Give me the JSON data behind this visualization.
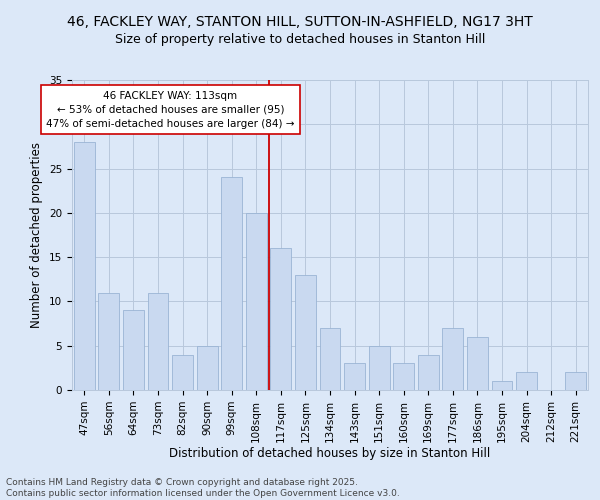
{
  "title_line1": "46, FACKLEY WAY, STANTON HILL, SUTTON-IN-ASHFIELD, NG17 3HT",
  "title_line2": "Size of property relative to detached houses in Stanton Hill",
  "xlabel": "Distribution of detached houses by size in Stanton Hill",
  "ylabel": "Number of detached properties",
  "categories": [
    "47sqm",
    "56sqm",
    "64sqm",
    "73sqm",
    "82sqm",
    "90sqm",
    "99sqm",
    "108sqm",
    "117sqm",
    "125sqm",
    "134sqm",
    "143sqm",
    "151sqm",
    "160sqm",
    "169sqm",
    "177sqm",
    "186sqm",
    "195sqm",
    "204sqm",
    "212sqm",
    "221sqm"
  ],
  "values": [
    28,
    11,
    9,
    11,
    4,
    5,
    24,
    20,
    16,
    13,
    7,
    3,
    5,
    3,
    4,
    7,
    6,
    1,
    2,
    0,
    2
  ],
  "bar_color": "#c9d9f0",
  "bar_edge_color": "#9ab4d4",
  "grid_color": "#b8c8dc",
  "background_color": "#dce8f8",
  "vline_x_index": 7.5,
  "vline_color": "#cc0000",
  "annotation_text": "46 FACKLEY WAY: 113sqm\n← 53% of detached houses are smaller (95)\n47% of semi-detached houses are larger (84) →",
  "annotation_box_color": "#ffffff",
  "annotation_border_color": "#cc0000",
  "ylim": [
    0,
    35
  ],
  "yticks": [
    0,
    5,
    10,
    15,
    20,
    25,
    30,
    35
  ],
  "footer_line1": "Contains HM Land Registry data © Crown copyright and database right 2025.",
  "footer_line2": "Contains public sector information licensed under the Open Government Licence v3.0.",
  "title_fontsize": 10,
  "subtitle_fontsize": 9,
  "axis_label_fontsize": 8.5,
  "tick_fontsize": 7.5,
  "annotation_fontsize": 7.5,
  "footer_fontsize": 6.5
}
